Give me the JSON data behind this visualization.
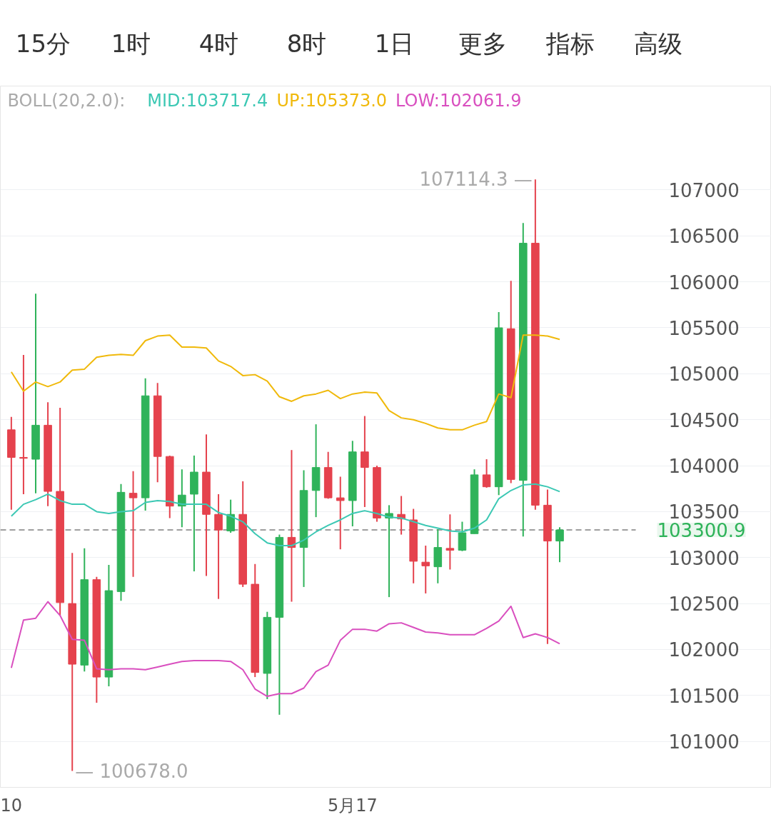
{
  "chart_data": {
    "type": "candlestick",
    "subtitle": "BOLL(20,2.0):",
    "categories": [
      "10",
      null,
      null,
      null,
      null,
      null,
      null,
      null,
      null,
      null,
      null,
      null,
      null,
      null,
      null,
      null,
      null,
      null,
      null,
      null,
      null,
      null,
      null,
      null,
      null,
      null,
      null,
      null,
      "5月17",
      null,
      null,
      null,
      null,
      null,
      null,
      null,
      null,
      null,
      null,
      null,
      null,
      null,
      null,
      null,
      null,
      null
    ],
    "ohlc": [
      [
        104390,
        104530,
        103520,
        104090
      ],
      [
        104090,
        105205,
        103690,
        104080
      ],
      [
        104070,
        105870,
        103700,
        104440
      ],
      [
        104440,
        104690,
        103560,
        103720
      ],
      [
        103720,
        104630,
        102370,
        102510
      ],
      [
        102500,
        103050,
        100678,
        101840
      ],
      [
        101830,
        103100,
        101760,
        102760
      ],
      [
        102760,
        102790,
        101420,
        101700
      ],
      [
        101700,
        102920,
        101600,
        102640
      ],
      [
        102630,
        103800,
        102530,
        103710
      ],
      [
        103700,
        103940,
        102790,
        103650
      ],
      [
        103650,
        104950,
        103510,
        104760
      ],
      [
        104760,
        104900,
        103820,
        104100
      ],
      [
        104100,
        104110,
        103430,
        103560
      ],
      [
        103560,
        103960,
        103330,
        103680
      ],
      [
        103690,
        104110,
        102850,
        103930
      ],
      [
        103930,
        104340,
        102800,
        103470
      ],
      [
        103470,
        103690,
        102550,
        103300
      ],
      [
        103290,
        103630,
        103270,
        103470
      ],
      [
        103470,
        103830,
        102680,
        102710
      ],
      [
        102710,
        102930,
        101700,
        101750
      ],
      [
        101740,
        102410,
        101460,
        102350
      ],
      [
        102350,
        103250,
        101290,
        103220
      ],
      [
        103220,
        104170,
        102520,
        103110
      ],
      [
        103110,
        103950,
        102680,
        103730
      ],
      [
        103730,
        104450,
        103440,
        103980
      ],
      [
        103980,
        104150,
        103640,
        103650
      ],
      [
        103650,
        103880,
        103090,
        103620
      ],
      [
        103620,
        104270,
        103340,
        104150
      ],
      [
        104150,
        104540,
        103550,
        103980
      ],
      [
        103980,
        104000,
        103390,
        103430
      ],
      [
        103430,
        103570,
        102570,
        103480
      ],
      [
        103470,
        103670,
        103250,
        103420
      ],
      [
        103410,
        103530,
        102720,
        102960
      ],
      [
        102950,
        103130,
        102610,
        102910
      ],
      [
        102900,
        103310,
        102720,
        103110
      ],
      [
        103100,
        103470,
        102870,
        103080
      ],
      [
        103080,
        103390,
        103070,
        103270
      ],
      [
        103260,
        103960,
        103260,
        103900
      ],
      [
        103900,
        104070,
        103760,
        103770
      ],
      [
        103770,
        105670,
        103680,
        105500
      ],
      [
        105490,
        106010,
        103810,
        103850
      ],
      [
        103840,
        106640,
        103230,
        106420
      ],
      [
        106420,
        107114.3,
        103520,
        103570
      ],
      [
        103570,
        103740,
        102060,
        103180
      ],
      [
        103180,
        103330,
        102950,
        103300.9
      ]
    ],
    "series": [
      {
        "name": "MID:103717.4",
        "type": "line",
        "color": "#3cc8b4",
        "values": [
          103450,
          103580,
          103630,
          103690,
          103620,
          103580,
          103580,
          103500,
          103480,
          103500,
          103510,
          103600,
          103620,
          103610,
          103580,
          103580,
          103580,
          103490,
          103450,
          103390,
          103260,
          103160,
          103130,
          103130,
          103190,
          103280,
          103350,
          103410,
          103480,
          103510,
          103480,
          103440,
          103430,
          103390,
          103350,
          103320,
          103290,
          103280,
          103320,
          103410,
          103640,
          103730,
          103790,
          103800,
          103770,
          103717.4
        ]
      },
      {
        "name": "UP:105373.0",
        "type": "line",
        "color": "#f0b90b",
        "values": [
          105020,
          104810,
          104910,
          104860,
          104910,
          105040,
          105050,
          105180,
          105200,
          105210,
          105200,
          105360,
          105410,
          105420,
          105290,
          105290,
          105280,
          105140,
          105080,
          104980,
          104990,
          104920,
          104750,
          104700,
          104760,
          104780,
          104820,
          104730,
          104780,
          104800,
          104790,
          104600,
          104520,
          104500,
          104460,
          104410,
          104390,
          104390,
          104440,
          104480,
          104780,
          104740,
          105420,
          105420,
          105410,
          105373.0
        ]
      },
      {
        "name": "LOW:102061.9",
        "type": "line",
        "color": "#d94fbf",
        "values": [
          101800,
          102320,
          102340,
          102520,
          102370,
          102110,
          102100,
          101790,
          101780,
          101790,
          101790,
          101780,
          101810,
          101840,
          101870,
          101880,
          101880,
          101880,
          101870,
          101780,
          101570,
          101490,
          101520,
          101520,
          101580,
          101760,
          101830,
          102100,
          102220,
          102220,
          102200,
          102280,
          102290,
          102240,
          102190,
          102180,
          102160,
          102160,
          102160,
          102230,
          102310,
          102470,
          102130,
          102170,
          102130,
          102061.9
        ]
      }
    ],
    "ylim": [
      100500,
      108130
    ],
    "yticks": [
      101000,
      101500,
      102000,
      102500,
      103000,
      103500,
      104000,
      104500,
      105000,
      105500,
      106000,
      106500,
      107000
    ],
    "grid": "y",
    "ref_lines": [
      {
        "axis": "y",
        "value": 103300.9,
        "label": "103300.9",
        "color": "#9e9e9e",
        "line_style": "dashed"
      }
    ],
    "annotations": [
      "15分",
      "1时",
      "4时",
      "8时",
      "1日",
      "更多",
      "指标",
      "高级",
      "107114.3 —",
      "— 100678.0"
    ]
  }
}
